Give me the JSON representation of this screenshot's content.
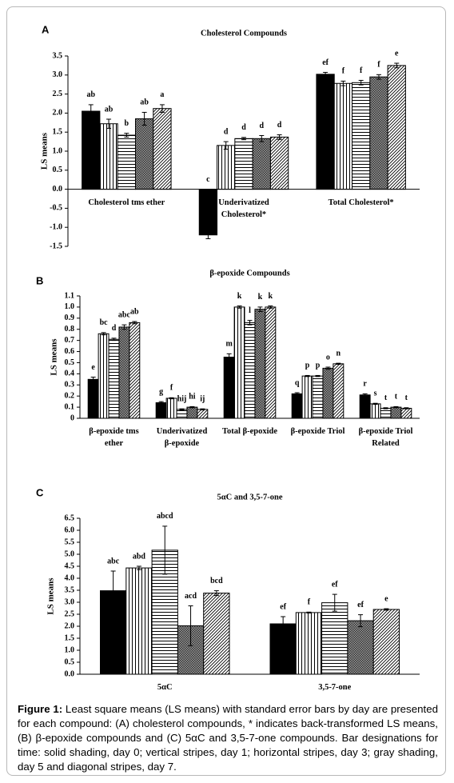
{
  "chart_data": [
    {
      "type": "bar",
      "panel": "A",
      "title": "Cholesterol Compounds",
      "ylabel": "LS means",
      "categories": [
        "Cholesterol tms ether",
        "Underivatized\nCholesterol*",
        "Total Cholesterol*"
      ],
      "ylim": [
        -1.5,
        3.5
      ],
      "yticks": [
        -1.5,
        {
          "value": -1,
          "label": "-1.0"
        },
        -0.5,
        {
          "value": 0,
          "label": "0.0"
        },
        0.5,
        {
          "value": 1,
          "label": "1.0"
        },
        1.5,
        {
          "value": 2,
          "label": "2.0"
        },
        2.5,
        {
          "value": 3,
          "label": "3.0"
        },
        3.5
      ],
      "series": [
        {
          "pattern": "solid",
          "color": "#000000",
          "values": [
            2.05,
            -1.2,
            3.02
          ],
          "errors": [
            0.17,
            0.1,
            0.05
          ],
          "letters": [
            "ab",
            "c",
            "ef"
          ]
        },
        {
          "pattern": "vertical",
          "color": "#000000",
          "values": [
            1.72,
            1.15,
            2.78
          ],
          "errors": [
            0.12,
            0.1,
            0.06
          ],
          "letters": [
            "ab",
            "d",
            "f"
          ]
        },
        {
          "pattern": "horizontal",
          "color": "#000000",
          "values": [
            1.42,
            1.33,
            2.8
          ],
          "errors": [
            0.05,
            0.03,
            0.06
          ],
          "letters": [
            "b",
            "d",
            "f"
          ]
        },
        {
          "pattern": "gray",
          "color": "#000000",
          "values": [
            1.85,
            1.33,
            2.95
          ],
          "errors": [
            0.17,
            0.08,
            0.06
          ],
          "letters": [
            "ab",
            "d",
            "f"
          ]
        },
        {
          "pattern": "diagonal",
          "color": "#000000",
          "values": [
            2.12,
            1.37,
            3.25
          ],
          "errors": [
            0.1,
            0.06,
            0.06
          ],
          "letters": [
            "a",
            "d",
            "e"
          ]
        }
      ]
    },
    {
      "type": "bar",
      "panel": "B",
      "title": "β-epoxide Compounds",
      "ylabel": "LS means",
      "categories": [
        "β-epoxide tms\nether",
        "Underivatized\nβ-epoxide",
        "Total β-epoxide",
        "β-epoxide Triol",
        "β-epoxide Triol\nRelated"
      ],
      "ylim": [
        0,
        1.1
      ],
      "yticks": [
        0,
        0.1,
        0.2,
        0.3,
        0.4,
        0.5,
        0.6,
        0.7,
        0.8,
        0.9,
        {
          "value": 1,
          "label": "1.0"
        },
        1.1
      ],
      "series": [
        {
          "pattern": "solid",
          "color": "#000000",
          "values": [
            0.35,
            0.14,
            0.55,
            0.22,
            0.21
          ],
          "errors": [
            0.02,
            0.01,
            0.03,
            0.01,
            0.01
          ],
          "letters": [
            "e",
            "g",
            "m",
            "q",
            "r"
          ]
        },
        {
          "pattern": "vertical",
          "color": "#000000",
          "values": [
            0.76,
            0.18,
            1.0,
            0.38,
            0.13
          ],
          "errors": [
            0.01,
            0.005,
            0.01,
            0.005,
            0.005
          ],
          "letters": [
            "bc",
            "f",
            "k",
            "p",
            "s"
          ]
        },
        {
          "pattern": "horizontal",
          "color": "#000000",
          "values": [
            0.71,
            0.08,
            0.86,
            0.38,
            0.09
          ],
          "errors": [
            0.01,
            0.005,
            0.02,
            0.005,
            0.005
          ],
          "letters": [
            "d",
            "hij",
            "l",
            "p",
            "t"
          ]
        },
        {
          "pattern": "gray",
          "color": "#000000",
          "values": [
            0.82,
            0.1,
            0.98,
            0.45,
            0.1
          ],
          "errors": [
            0.02,
            0.005,
            0.02,
            0.01,
            0.005
          ],
          "letters": [
            "abc",
            "hi",
            "k",
            "o",
            "t"
          ]
        },
        {
          "pattern": "diagonal",
          "color": "#000000",
          "values": [
            0.86,
            0.08,
            1.0,
            0.49,
            0.09
          ],
          "errors": [
            0.01,
            0.005,
            0.01,
            0.005,
            0.005
          ],
          "letters": [
            "ab",
            "ij",
            "k",
            "n",
            "t"
          ]
        }
      ]
    },
    {
      "type": "bar",
      "panel": "C",
      "title": "5αC and 3,5-7-one",
      "ylabel": "LS means",
      "categories": [
        "5αC",
        "3,5-7-one"
      ],
      "ylim": [
        0,
        6.5
      ],
      "yticks": [
        {
          "value": 0,
          "label": "0.0"
        },
        0.5,
        {
          "value": 1,
          "label": "1.0"
        },
        1.5,
        {
          "value": 2,
          "label": "2.0"
        },
        2.5,
        {
          "value": 3,
          "label": "3.0"
        },
        3.5,
        {
          "value": 4,
          "label": "4.0"
        },
        4.5,
        {
          "value": 5,
          "label": "5.0"
        },
        5.5,
        {
          "value": 6,
          "label": "6.0"
        },
        6.5
      ],
      "series": [
        {
          "pattern": "solid",
          "color": "#000000",
          "values": [
            3.48,
            2.1
          ],
          "errors": [
            0.82,
            0.3
          ],
          "letters": [
            "abc",
            "ef"
          ]
        },
        {
          "pattern": "vertical",
          "color": "#000000",
          "values": [
            4.43,
            2.57
          ],
          "errors": [
            0.07,
            0.02
          ],
          "letters": [
            "abd",
            "f"
          ]
        },
        {
          "pattern": "horizontal",
          "color": "#000000",
          "values": [
            5.17,
            2.98
          ],
          "errors": [
            1.0,
            0.35
          ],
          "letters": [
            "abcd",
            "ef"
          ]
        },
        {
          "pattern": "gray",
          "color": "#000000",
          "values": [
            2.02,
            2.23
          ],
          "errors": [
            0.83,
            0.25
          ],
          "letters": [
            "acd",
            "ef"
          ]
        },
        {
          "pattern": "diagonal",
          "color": "#000000",
          "values": [
            3.38,
            2.7
          ],
          "errors": [
            0.1,
            0.03
          ],
          "letters": [
            "bcd",
            "e"
          ]
        }
      ]
    }
  ],
  "caption": {
    "label": "Figure 1:",
    "text": "Least square means (LS means) with standard error bars by day are presented for each compound: (A) cholesterol compounds, * indicates back-transformed LS means, (B) β-epoxide compounds and (C)  5αC and 3,5-7-one compounds.  Bar designations for time: solid shading, day 0; vertical stripes, day 1; horizontal stripes, day 3; gray shading, day 5 and diagonal stripes, day 7."
  }
}
